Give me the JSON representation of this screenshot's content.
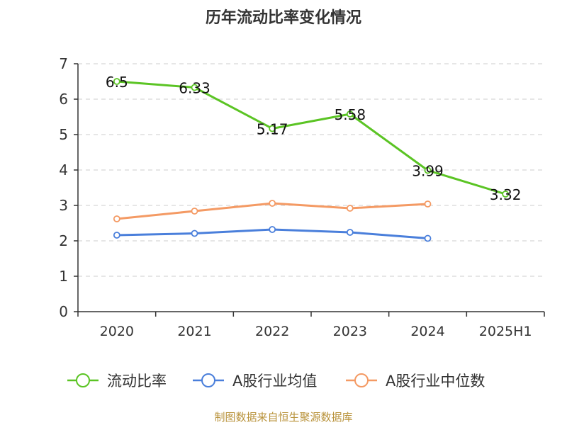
{
  "chart_data": {
    "type": "line",
    "title": "历年流动比率变化情况",
    "categories": [
      "2020",
      "2021",
      "2022",
      "2023",
      "2024",
      "2025H1"
    ],
    "ylim": [
      0,
      7
    ],
    "yticks": [
      0,
      1,
      2,
      3,
      4,
      5,
      6,
      7
    ],
    "grid": true,
    "legend_position": "bottom",
    "series": [
      {
        "name": "流动比率",
        "color": "#5bc424",
        "values": [
          6.5,
          6.33,
          5.17,
          5.58,
          3.99,
          3.32
        ],
        "data_labels": [
          "6.5",
          "6.33",
          "5.17",
          "5.58",
          "3.99",
          "3.32"
        ]
      },
      {
        "name": "A股行业均值",
        "color": "#4a7fdb",
        "values": [
          2.16,
          2.21,
          2.32,
          2.24,
          2.07,
          null
        ]
      },
      {
        "name": "A股行业中位数",
        "color": "#f49a64",
        "values": [
          2.62,
          2.84,
          3.06,
          2.92,
          3.04,
          null
        ]
      }
    ],
    "source": "制图数据来自恒生聚源数据库"
  }
}
